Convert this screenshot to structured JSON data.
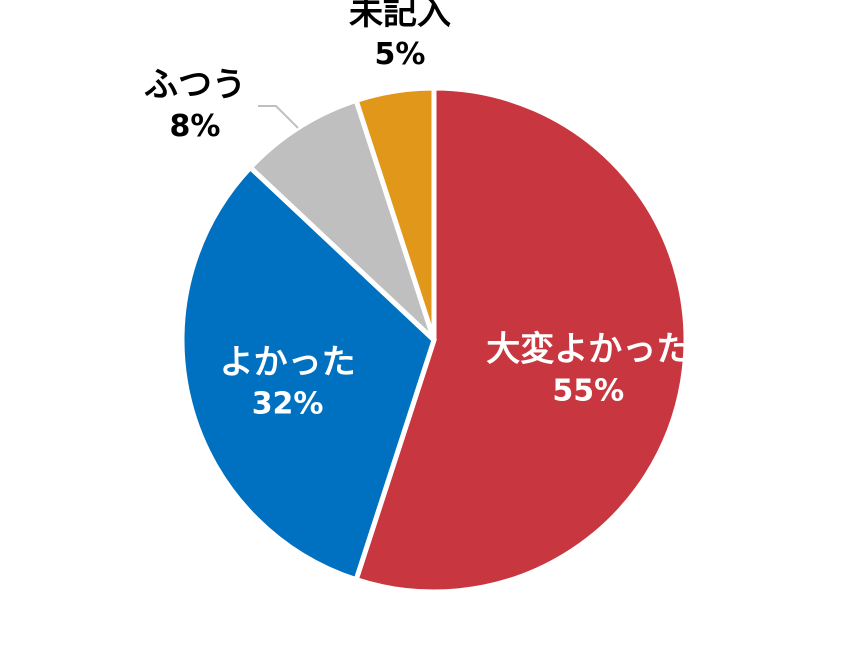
{
  "chart_data": {
    "type": "pie",
    "slices": [
      {
        "label": "大変よかった",
        "value": 55,
        "value_label": "55%",
        "color": "#c8363f",
        "label_color": "#ffffff"
      },
      {
        "label": "よかった",
        "value": 32,
        "value_label": "32%",
        "color": "#0070c0",
        "label_color": "#ffffff"
      },
      {
        "label": "ふつう",
        "value": 8,
        "value_label": "8%",
        "color": "#bfbfbf",
        "label_color": "#000000"
      },
      {
        "label": "未記入",
        "value": 5,
        "value_label": "5%",
        "color": "#e0971a",
        "label_color": "#000000"
      }
    ],
    "legend": "none"
  }
}
